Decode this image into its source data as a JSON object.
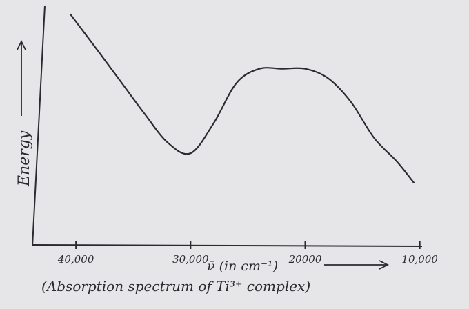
{
  "chart_data": {
    "type": "line",
    "y_label": "Energy",
    "x_label": "ν̄ (in cm⁻¹)",
    "caption": "(Absorption spectrum of Ti³⁺ complex)",
    "x": [
      40500,
      38000,
      36000,
      34000,
      32000,
      30000,
      28000,
      26000,
      24000,
      22000,
      20000,
      18000,
      16000,
      14000,
      12000,
      10500
    ],
    "series": [
      {
        "color": "#2a2a30",
        "values": [
          97,
          81,
          68,
          55,
          43,
          38.5,
          51,
          68,
          74,
          74,
          74,
          70,
          60,
          45,
          35,
          26
        ]
      }
    ],
    "xlim": [
      43800,
      9800
    ],
    "xticks": [
      {
        "value": 40000,
        "label": "40,000"
      },
      {
        "value": 30000,
        "label": "30,000"
      },
      20000,
      {
        "value": 10000,
        "label": "10,000"
      }
    ],
    "ylim": [
      0,
      100
    ]
  }
}
